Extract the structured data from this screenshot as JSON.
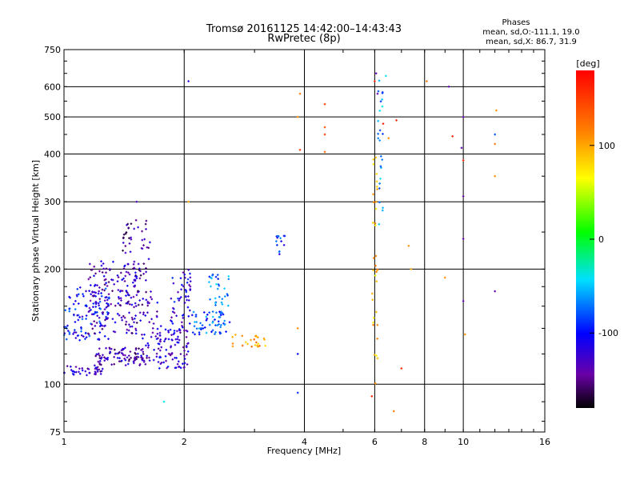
{
  "chart_data": {
    "type": "scatter",
    "title": "Tromsø 20161125 14:42:00–14:43:43",
    "subtitle": "RwPretec (8p)",
    "xlabel": "Frequency [MHz]",
    "ylabel": "Stationary phase Virtual Height [km]",
    "xscale": "log",
    "yscale": "log",
    "xlim": [
      1,
      16
    ],
    "ylim": [
      75,
      750
    ],
    "x_ticks": [
      1,
      2,
      4,
      6,
      8,
      10,
      16
    ],
    "y_ticks": [
      75,
      100,
      200,
      300,
      400,
      500,
      600,
      750
    ],
    "grid": true,
    "colorbar": {
      "label": "[deg]",
      "range": [
        -180,
        180
      ],
      "ticks": [
        100,
        0,
        -100
      ]
    },
    "stats": {
      "heading": "Phases",
      "line1": "mean, sd,O:-111.1, 19.0",
      "line2": "mean, sd,X: 86.7, 31.9"
    },
    "clusters": [
      {
        "fmin": 1.0,
        "fmax": 1.25,
        "hmin": 105,
        "hmax": 112,
        "count": 40,
        "phase": -125
      },
      {
        "fmin": 1.0,
        "fmax": 1.3,
        "hmin": 130,
        "hmax": 180,
        "count": 110,
        "phase": -100
      },
      {
        "fmin": 1.15,
        "fmax": 1.55,
        "hmin": 135,
        "hmax": 210,
        "count": 160,
        "phase": -130
      },
      {
        "fmin": 1.2,
        "fmax": 1.6,
        "hmin": 112,
        "hmax": 125,
        "count": 90,
        "phase": -135
      },
      {
        "fmin": 1.4,
        "fmax": 1.65,
        "hmin": 160,
        "hmax": 270,
        "count": 70,
        "phase": -140
      },
      {
        "fmin": 1.55,
        "fmax": 1.75,
        "hmin": 112,
        "hmax": 170,
        "count": 45,
        "phase": -125
      },
      {
        "fmin": 1.7,
        "fmax": 2.05,
        "hmin": 110,
        "hmax": 140,
        "count": 90,
        "phase": -120
      },
      {
        "fmin": 1.85,
        "fmax": 2.1,
        "hmin": 140,
        "hmax": 200,
        "count": 55,
        "phase": -115
      },
      {
        "fmin": 2.1,
        "fmax": 2.6,
        "hmin": 135,
        "hmax": 155,
        "count": 60,
        "phase": -80
      },
      {
        "fmin": 2.3,
        "fmax": 2.6,
        "hmin": 160,
        "hmax": 195,
        "count": 30,
        "phase": -70
      },
      {
        "fmin": 2.6,
        "fmax": 3.2,
        "hmin": 125,
        "hmax": 135,
        "count": 25,
        "phase": 100
      },
      {
        "fmin": 3.4,
        "fmax": 3.6,
        "hmin": 215,
        "hmax": 245,
        "count": 14,
        "phase": -90
      },
      {
        "fmin": 5.9,
        "fmax": 6.1,
        "hmin": 100,
        "hmax": 400,
        "count": 35,
        "phase": 90
      },
      {
        "fmin": 6.1,
        "fmax": 6.3,
        "hmin": 240,
        "hmax": 640,
        "count": 25,
        "phase": -60
      }
    ],
    "points": [
      {
        "x": 1.78,
        "y": 90,
        "phase": -40
      },
      {
        "x": 2.05,
        "y": 620,
        "phase": -120
      },
      {
        "x": 2.05,
        "y": 300,
        "phase": 100
      },
      {
        "x": 1.52,
        "y": 300,
        "phase": -130
      },
      {
        "x": 3.85,
        "y": 95,
        "phase": -90
      },
      {
        "x": 3.85,
        "y": 120,
        "phase": -100
      },
      {
        "x": 3.85,
        "y": 140,
        "phase": 110
      },
      {
        "x": 3.9,
        "y": 410,
        "phase": 150
      },
      {
        "x": 3.9,
        "y": 575,
        "phase": 120
      },
      {
        "x": 3.85,
        "y": 500,
        "phase": 110
      },
      {
        "x": 4.5,
        "y": 540,
        "phase": 150
      },
      {
        "x": 4.5,
        "y": 470,
        "phase": 140
      },
      {
        "x": 4.5,
        "y": 450,
        "phase": 150
      },
      {
        "x": 4.5,
        "y": 405,
        "phase": 130
      },
      {
        "x": 5.9,
        "y": 93,
        "phase": 160
      },
      {
        "x": 6.0,
        "y": 620,
        "phase": 160
      },
      {
        "x": 6.05,
        "y": 650,
        "phase": -140
      },
      {
        "x": 6.1,
        "y": 575,
        "phase": -140
      },
      {
        "x": 6.3,
        "y": 480,
        "phase": 170
      },
      {
        "x": 6.4,
        "y": 640,
        "phase": -40
      },
      {
        "x": 6.5,
        "y": 440,
        "phase": 110
      },
      {
        "x": 6.7,
        "y": 85,
        "phase": 120
      },
      {
        "x": 6.8,
        "y": 490,
        "phase": 160
      },
      {
        "x": 7.0,
        "y": 110,
        "phase": 160
      },
      {
        "x": 7.3,
        "y": 230,
        "phase": 110
      },
      {
        "x": 7.4,
        "y": 200,
        "phase": 100
      },
      {
        "x": 8.1,
        "y": 620,
        "phase": 120
      },
      {
        "x": 9.0,
        "y": 190,
        "phase": 110
      },
      {
        "x": 9.2,
        "y": 600,
        "phase": -140
      },
      {
        "x": 9.4,
        "y": 445,
        "phase": 160
      },
      {
        "x": 9.9,
        "y": 415,
        "phase": -140
      },
      {
        "x": 10.0,
        "y": 385,
        "phase": 160
      },
      {
        "x": 10.0,
        "y": 500,
        "phase": -140
      },
      {
        "x": 10.0,
        "y": 310,
        "phase": -140
      },
      {
        "x": 10.0,
        "y": 240,
        "phase": -140
      },
      {
        "x": 10.0,
        "y": 165,
        "phase": -140
      },
      {
        "x": 10.1,
        "y": 135,
        "phase": 110
      },
      {
        "x": 12.0,
        "y": 175,
        "phase": -140
      },
      {
        "x": 12.0,
        "y": 350,
        "phase": 110
      },
      {
        "x": 12.0,
        "y": 425,
        "phase": 120
      },
      {
        "x": 12.0,
        "y": 450,
        "phase": -80
      },
      {
        "x": 12.1,
        "y": 520,
        "phase": 110
      }
    ]
  }
}
